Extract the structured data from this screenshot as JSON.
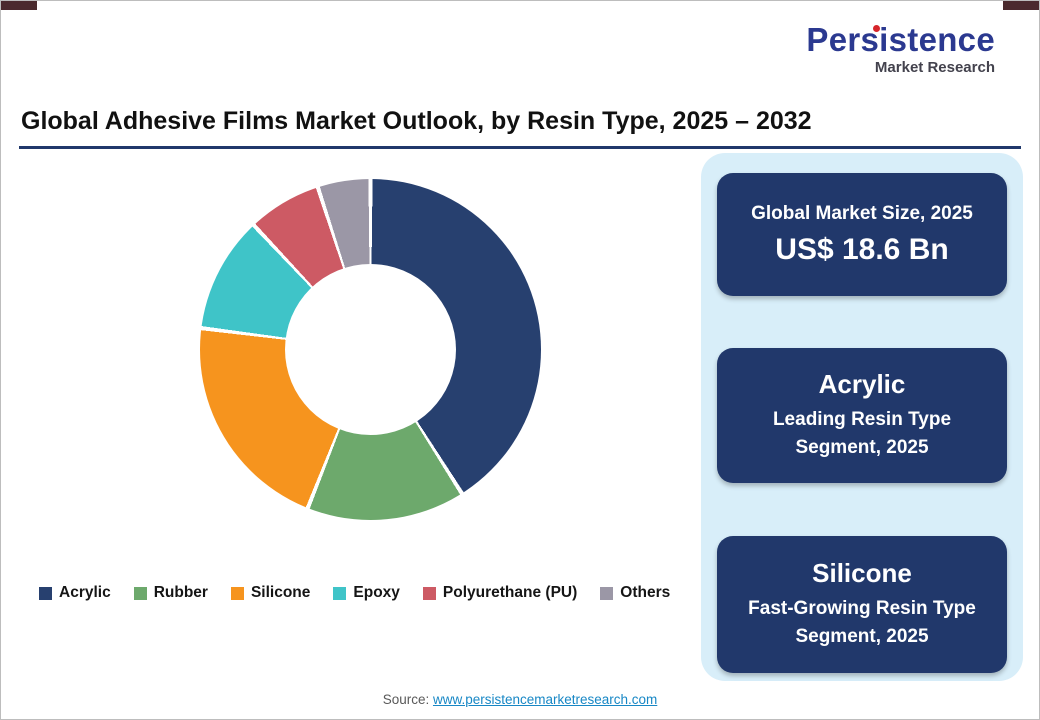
{
  "logo": {
    "title": "Persistence",
    "subtitle": "Market Research"
  },
  "header": {
    "title": "Global Adhesive Films Market Outlook, by Resin Type, 2025 – 2032"
  },
  "chart_data": {
    "type": "pie",
    "subtype": "donut",
    "title": "Global Adhesive Films Market Outlook, by Resin Type, 2025 – 2032",
    "categories": [
      "Acrylic",
      "Rubber",
      "Silicone",
      "Epoxy",
      "Polyurethane (PU)",
      "Others"
    ],
    "values": [
      41,
      15,
      21,
      11,
      7,
      5
    ],
    "colors": [
      "#27406f",
      "#6da96c",
      "#f6941e",
      "#3fc4c8",
      "#cd5a64",
      "#9b97a6"
    ],
    "donut_hole_ratio": 0.5,
    "start_angle_deg": 0,
    "legend_position": "bottom",
    "data_labels": "none"
  },
  "side_panel": {
    "cards": [
      {
        "title": "Global Market Size, 2025",
        "value": "US$ 18.6 Bn"
      },
      {
        "title": "Acrylic",
        "value": "Leading Resin Type Segment, 2025"
      },
      {
        "title": "Silicone",
        "value": "Fast-Growing Resin Type Segment, 2025"
      }
    ]
  },
  "footer": {
    "source_label": "Source: ",
    "source_link": "www.persistencemarketresearch.com"
  },
  "theme": {
    "panel_bg": "#d8eef9",
    "card_bg": "#21386b",
    "title_rule": "#20386b",
    "logo_navy": "#2b3990",
    "logo_red": "#d6252b",
    "link_color": "#1787c5"
  }
}
